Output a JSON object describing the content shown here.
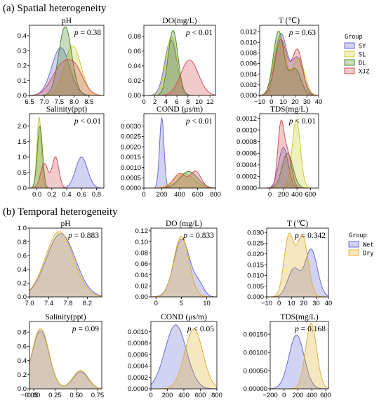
{
  "sections": [
    {
      "title": "(a) Spatial heterogeneity"
    },
    {
      "title": "(b) Temporal heterogeneity"
    }
  ],
  "colors": {
    "SY": "#6b6bd6",
    "SL": "#c9cc30",
    "DL": "#4d8a2e",
    "XJZ": "#d24f55",
    "Wet": "#6b6bd6",
    "Dry": "#e0b030"
  },
  "legends": [
    {
      "title": "Group",
      "entries": [
        "SY",
        "SL",
        "DL",
        "XJZ"
      ]
    },
    {
      "title": "Group",
      "entries": [
        "Wet",
        "Dry"
      ]
    }
  ],
  "chart_data": [
    {
      "type": "area",
      "section": "a",
      "title": "pH",
      "p_value": "p = 0.38",
      "xlim": [
        6.5,
        9.0
      ],
      "ylim": [
        0,
        0.47
      ],
      "xticks": [
        "6.5",
        "7.0",
        "7.5",
        "8.0",
        "8.5"
      ],
      "xtick_values": [
        6.5,
        7.0,
        7.5,
        8.0,
        8.5
      ],
      "yticks": [
        "0.0",
        "0.1",
        "0.2",
        "0.3",
        "0.4"
      ],
      "ytick_values": [
        0,
        0.1,
        0.2,
        0.3,
        0.4
      ],
      "series": [
        {
          "name": "SY",
          "peaks": [
            [
              7.55,
              0.32,
              0.3
            ]
          ]
        },
        {
          "name": "SL",
          "peaks": [
            [
              7.95,
              0.33,
              0.28
            ]
          ]
        },
        {
          "name": "DL",
          "peaks": [
            [
              7.7,
              0.46,
              0.22
            ]
          ]
        },
        {
          "name": "XJZ",
          "peaks": [
            [
              7.55,
              0.18,
              0.32
            ],
            [
              8.05,
              0.16,
              0.28
            ]
          ]
        }
      ]
    },
    {
      "type": "area",
      "section": "a",
      "title": "DO(mg/L)",
      "p_value": "p < 0.01",
      "xlim": [
        0,
        13
      ],
      "ylim": [
        0,
        0.095
      ],
      "xticks": [
        "0",
        "2",
        "4",
        "6",
        "8",
        "10",
        "12"
      ],
      "xtick_values": [
        0,
        2,
        4,
        6,
        8,
        10,
        12
      ],
      "yticks": [
        "0.00",
        "0.02",
        "0.04",
        "0.06",
        "0.08"
      ],
      "ytick_values": [
        0,
        0.02,
        0.04,
        0.06,
        0.08
      ],
      "series": [
        {
          "name": "SY",
          "peaks": [
            [
              4.9,
              0.075,
              1.1
            ]
          ]
        },
        {
          "name": "SL",
          "peaks": [
            [
              5.0,
              0.08,
              1.0
            ]
          ]
        },
        {
          "name": "DL",
          "peaks": [
            [
              5.3,
              0.088,
              0.9
            ]
          ]
        },
        {
          "name": "XJZ",
          "peaks": [
            [
              8.3,
              0.048,
              1.6
            ]
          ]
        }
      ]
    },
    {
      "type": "area",
      "section": "a",
      "title": "T (℃)",
      "p_value": "p = 0.63",
      "xlim": [
        -10,
        40
      ],
      "ylim": [
        0,
        0.0132
      ],
      "xticks": [
        "−10",
        "0",
        "10",
        "20",
        "30",
        "40"
      ],
      "xtick_values": [
        -10,
        0,
        10,
        20,
        30,
        40
      ],
      "yticks": [
        "0.000",
        "0.002",
        "0.004",
        "0.006",
        "0.008",
        "0.010",
        "0.012"
      ],
      "ytick_values": [
        0,
        0.002,
        0.004,
        0.006,
        0.008,
        0.01,
        0.012
      ],
      "series": [
        {
          "name": "SY",
          "peaks": [
            [
              8,
              0.0115,
              5
            ],
            [
              22,
              0.007,
              5
            ]
          ]
        },
        {
          "name": "SL",
          "peaks": [
            [
              7,
              0.011,
              5
            ],
            [
              23,
              0.007,
              5
            ]
          ]
        },
        {
          "name": "DL",
          "peaks": [
            [
              6,
              0.012,
              4.5
            ],
            [
              20,
              0.005,
              5
            ]
          ]
        },
        {
          "name": "XJZ",
          "peaks": [
            [
              8,
              0.0105,
              5
            ],
            [
              22,
              0.0085,
              4.5
            ]
          ]
        }
      ]
    },
    {
      "type": "area",
      "section": "a",
      "title": "Salinity(ppt)",
      "p_value": "p < 0.01",
      "xlim": [
        -0.1,
        0.9
      ],
      "ylim": [
        0,
        2.4
      ],
      "xticks": [
        "0.0",
        "0.2",
        "0.4",
        "0.6",
        "0.8"
      ],
      "xtick_values": [
        0,
        0.2,
        0.4,
        0.6,
        0.8
      ],
      "yticks": [
        "0.0",
        "0.5",
        "1.0",
        "1.5",
        "2.0"
      ],
      "ytick_values": [
        0,
        0.5,
        1.0,
        1.5,
        2.0
      ],
      "series": [
        {
          "name": "SY",
          "peaks": [
            [
              0.6,
              1.0,
              0.08
            ]
          ]
        },
        {
          "name": "SL",
          "peaks": [
            [
              0.03,
              2.3,
              0.03
            ]
          ]
        },
        {
          "name": "DL",
          "peaks": [
            [
              0.04,
              2.0,
              0.035
            ]
          ]
        },
        {
          "name": "XJZ",
          "peaks": [
            [
              0.1,
              0.8,
              0.05
            ],
            [
              0.25,
              1.0,
              0.045
            ]
          ]
        }
      ]
    },
    {
      "type": "area",
      "section": "a",
      "title": "COND (μs/m)",
      "p_value": "p < 0.01",
      "xlim": [
        0,
        800
      ],
      "ylim": [
        0,
        0.0036
      ],
      "xticks": [
        "0",
        "200",
        "400",
        "600",
        "800"
      ],
      "xtick_values": [
        0,
        200,
        400,
        600,
        800
      ],
      "yticks": [
        "0.0000",
        "0.0005",
        "0.0010",
        "0.0015",
        "0.0020",
        "0.0025",
        "0.0030"
      ],
      "ytick_values": [
        0,
        0.0005,
        0.001,
        0.0015,
        0.002,
        0.0025,
        0.003
      ],
      "series": [
        {
          "name": "SY",
          "peaks": [
            [
              200,
              0.0034,
              25
            ]
          ]
        },
        {
          "name": "SL",
          "peaks": [
            [
              450,
              0.0007,
              110
            ]
          ]
        },
        {
          "name": "DL",
          "peaks": [
            [
              500,
              0.0008,
              100
            ]
          ]
        },
        {
          "name": "XJZ",
          "peaks": [
            [
              400,
              0.0007,
              70
            ],
            [
              580,
              0.0008,
              60
            ]
          ]
        }
      ]
    },
    {
      "type": "area",
      "section": "a",
      "title": "TDS(mg/L)",
      "p_value": "p < 0.01",
      "xlim": [
        -150,
        720
      ],
      "ylim": [
        0,
        0.00128
      ],
      "xticks": [
        "0",
        "200",
        "400",
        "600"
      ],
      "xtick_values": [
        0,
        200,
        400,
        600
      ],
      "yticks": [
        "0.0000",
        "0.0002",
        "0.0004",
        "0.0006",
        "0.0008",
        "0.0010",
        "0.0012"
      ],
      "ytick_values": [
        0,
        0.0002,
        0.0004,
        0.0006,
        0.0008,
        0.001,
        0.0012
      ],
      "series": [
        {
          "name": "SY",
          "peaks": [
            [
              200,
              0.0007,
              70
            ]
          ]
        },
        {
          "name": "SL",
          "peaks": [
            [
              390,
              0.00118,
              60
            ]
          ]
        },
        {
          "name": "DL",
          "peaks": [
            [
              260,
              0.0006,
              80
            ]
          ]
        },
        {
          "name": "XJZ",
          "peaks": [
            [
              160,
              0.001,
              45
            ],
            [
              260,
              0.0006,
              60
            ]
          ]
        }
      ]
    },
    {
      "type": "area",
      "section": "b",
      "title": "pH",
      "p_value": "p = 0.883",
      "xlim": [
        7.0,
        8.5
      ],
      "ylim": [
        0,
        1.0
      ],
      "xticks": [
        "7.0",
        "7.4",
        "7.8",
        "8.2"
      ],
      "xtick_values": [
        7.0,
        7.4,
        7.8,
        8.2
      ],
      "yticks": [
        "0.0",
        "0.2",
        "0.4",
        "0.6",
        "0.8",
        "1.0"
      ],
      "ytick_values": [
        0,
        0.2,
        0.4,
        0.6,
        0.8,
        1.0
      ],
      "series": [
        {
          "name": "Wet",
          "peaks": [
            [
              7.65,
              0.92,
              0.3
            ]
          ]
        },
        {
          "name": "Dry",
          "peaks": [
            [
              7.62,
              0.95,
              0.29
            ]
          ]
        }
      ]
    },
    {
      "type": "area",
      "section": "b",
      "title": "DO (mg/L)",
      "p_value": "p = 0.833",
      "xlim": [
        -1,
        12
      ],
      "ylim": [
        0,
        0.125
      ],
      "xticks": [
        "0",
        "5",
        "10"
      ],
      "xtick_values": [
        0,
        5,
        10
      ],
      "yticks": [
        "0.00",
        "0.02",
        "0.04",
        "0.06",
        "0.08",
        "0.10",
        "0.12"
      ],
      "ytick_values": [
        0,
        0.02,
        0.04,
        0.06,
        0.08,
        0.1,
        0.12
      ],
      "series": [
        {
          "name": "Wet",
          "peaks": [
            [
              5.1,
              0.105,
              1.6
            ],
            [
              8.5,
              0.02,
              1.0
            ]
          ]
        },
        {
          "name": "Dry",
          "peaks": [
            [
              5.0,
              0.11,
              1.5
            ]
          ]
        }
      ]
    },
    {
      "type": "area",
      "section": "b",
      "title": "T (℃)",
      "p_value": "p = 0.342",
      "xlim": [
        -10,
        40
      ],
      "ylim": [
        0,
        0.032
      ],
      "xticks": [
        "−10",
        "0",
        "10",
        "20",
        "30",
        "40"
      ],
      "xtick_values": [
        -10,
        0,
        10,
        20,
        30,
        40
      ],
      "yticks": [
        "0.000",
        "0.005",
        "0.010",
        "0.015",
        "0.020",
        "0.025",
        "0.030"
      ],
      "ytick_values": [
        0,
        0.005,
        0.01,
        0.015,
        0.02,
        0.025,
        0.03
      ],
      "series": [
        {
          "name": "Wet",
          "peaks": [
            [
              12,
              0.013,
              5
            ],
            [
              26,
              0.022,
              5
            ]
          ]
        },
        {
          "name": "Dry",
          "peaks": [
            [
              8,
              0.028,
              4
            ],
            [
              19,
              0.028,
              4.5
            ]
          ]
        }
      ]
    },
    {
      "type": "area",
      "section": "b",
      "title": "Salinity(ppt)",
      "p_value": "p = 0.09",
      "xlim": [
        -0.05,
        0.8
      ],
      "ylim": [
        0,
        0.95
      ],
      "xticks": [
        "−0.05",
        "0.00",
        "0.25",
        "0.50",
        "0.75"
      ],
      "xtick_values": [
        -0.05,
        0,
        0.25,
        0.5,
        0.75
      ],
      "yticks": [
        "0.0",
        "0.2",
        "0.4",
        "0.6",
        "0.8"
      ],
      "ytick_values": [
        0,
        0.2,
        0.4,
        0.6,
        0.8
      ],
      "series": [
        {
          "name": "Wet",
          "peaks": [
            [
              0.08,
              0.82,
              0.1
            ],
            [
              0.55,
              0.24,
              0.09
            ]
          ]
        },
        {
          "name": "Dry",
          "peaks": [
            [
              0.08,
              0.85,
              0.1
            ],
            [
              0.55,
              0.26,
              0.09
            ]
          ]
        }
      ]
    },
    {
      "type": "area",
      "section": "b",
      "title": "COND (μs/m)",
      "p_value": "p < 0.05",
      "xlim": [
        0,
        800
      ],
      "ylim": [
        0,
        0.00118
      ],
      "xticks": [
        "0",
        "200",
        "400",
        "600",
        "800"
      ],
      "xtick_values": [
        0,
        200,
        400,
        600,
        800
      ],
      "yticks": [
        "0.0000",
        "0.0002",
        "0.0004",
        "0.0006",
        "0.0008",
        "0.0010"
      ],
      "ytick_values": [
        0,
        0.0002,
        0.0004,
        0.0006,
        0.0008,
        0.001
      ],
      "series": [
        {
          "name": "Wet",
          "peaks": [
            [
              300,
              0.00112,
              130
            ]
          ]
        },
        {
          "name": "Dry",
          "peaks": [
            [
              520,
              0.00105,
              110
            ]
          ]
        }
      ]
    },
    {
      "type": "area",
      "section": "b",
      "title": "TDS(mg/L)",
      "p_value": "p = 0.168",
      "xlim": [
        -200,
        640
      ],
      "ylim": [
        0,
        0.00185
      ],
      "xticks": [
        "−200",
        "0",
        "200",
        "400",
        "600"
      ],
      "xtick_values": [
        -200,
        0,
        200,
        400,
        600
      ],
      "yticks": [
        "0.00000",
        "0.00050",
        "0.00100",
        "0.00150"
      ],
      "ytick_values": [
        0,
        0.0005,
        0.001,
        0.0015
      ],
      "series": [
        {
          "name": "Wet",
          "peaks": [
            [
              180,
              0.00148,
              110
            ]
          ]
        },
        {
          "name": "Dry",
          "peaks": [
            [
              390,
              0.0018,
              80
            ]
          ]
        }
      ]
    }
  ]
}
